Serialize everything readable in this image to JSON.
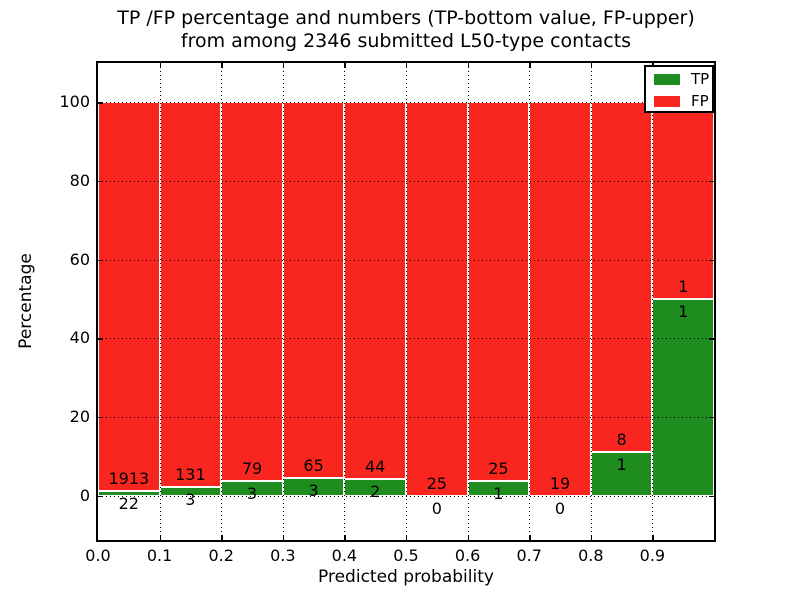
{
  "figure": {
    "title_line1": "TP /FP percentage and numbers (TP-bottom value, FP-upper)",
    "title_line2": "from among 2346 submitted L50-type contacts",
    "xlabel": "Predicted probability",
    "ylabel": "Percentage"
  },
  "legend": {
    "position": "upper right",
    "items": [
      {
        "label": "TP",
        "color": "#1f8c1f"
      },
      {
        "label": "FP",
        "color": "#f92620"
      }
    ]
  },
  "chart_data": {
    "type": "bar",
    "stacked": true,
    "normalized": "each bin scaled to 100%",
    "title": "TP /FP percentage and numbers (TP-bottom value, FP-upper) from among 2346 submitted L50-type contacts",
    "xlabel": "Predicted probability",
    "ylabel": "Percentage",
    "xlim": [
      0.0,
      1.0
    ],
    "ylim": [
      -11,
      110
    ],
    "x_tick_labels": [
      "0.0",
      "0.1",
      "0.2",
      "0.3",
      "0.4",
      "0.5",
      "0.6",
      "0.7",
      "0.8",
      "0.9"
    ],
    "y_ticks": [
      0,
      20,
      40,
      60,
      80,
      100
    ],
    "bin_width": 0.1,
    "grid": "dotted",
    "legend_position": "upper right",
    "total_contacts": 2346,
    "series": [
      {
        "name": "TP",
        "color": "#1f8c1f",
        "counts": [
          22,
          3,
          3,
          3,
          2,
          0,
          1,
          0,
          1,
          1
        ],
        "percent": [
          1.14,
          2.24,
          3.66,
          4.41,
          4.35,
          0.0,
          3.85,
          0.0,
          11.11,
          50.0
        ]
      },
      {
        "name": "FP",
        "color": "#f92620",
        "counts": [
          1913,
          131,
          79,
          65,
          44,
          25,
          25,
          19,
          8,
          1
        ],
        "percent": [
          98.86,
          97.76,
          96.34,
          95.59,
          95.65,
          100.0,
          96.15,
          100.0,
          88.89,
          50.0
        ]
      }
    ]
  }
}
